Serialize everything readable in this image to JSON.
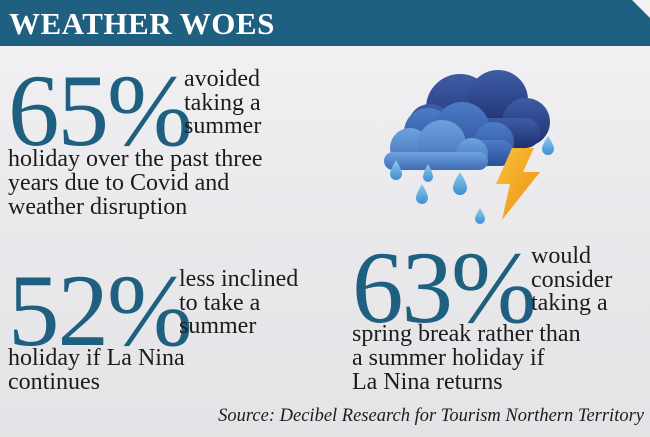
{
  "header": {
    "title": "WEATHER WOES"
  },
  "stats": [
    {
      "percent": "65%",
      "side_text": "avoided\ntaking a\nsummer",
      "under_text": "holiday over the past three\nyears due to Covid and\nweather disruption"
    },
    {
      "percent": "52%",
      "side_text": "less inclined\nto take a\nsummer",
      "under_text": "holiday if La Nina\ncontinues"
    },
    {
      "percent": "63%",
      "side_text": "would\nconsider\ntaking a",
      "under_text": "spring break rather than\na summer holiday if\nLa Nina returns"
    }
  ],
  "source": "Source: Decibel Research for Tourism Northern Territory",
  "illustration": {
    "icon": "storm-cloud-icon"
  },
  "colors": {
    "accent": "#1f5f80",
    "text": "#1c1c1c",
    "background": "#ececef",
    "lightning": "#f2a51c",
    "raindrop": "#59a6d8"
  }
}
